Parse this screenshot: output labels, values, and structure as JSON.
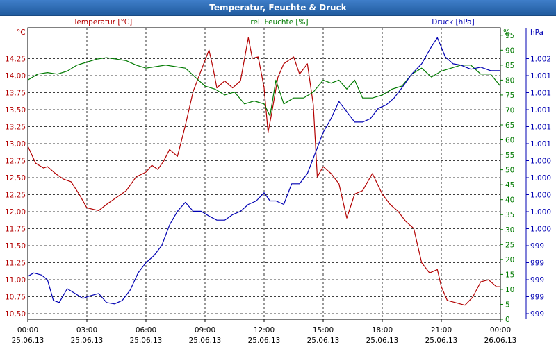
{
  "window": {
    "title": "Temperatur, Feuchte & Druck"
  },
  "chart_data": {
    "type": "line",
    "title": "Temperatur, Feuchte & Druck",
    "colors": {
      "temp": "#b30000",
      "hum": "#007a00",
      "press": "#0000b3"
    },
    "x_ticks": [
      {
        "time": "00:00",
        "date": "25.06.13"
      },
      {
        "time": "03:00",
        "date": "25.06.13"
      },
      {
        "time": "06:00",
        "date": "25.06.13"
      },
      {
        "time": "09:00",
        "date": "25.06.13"
      },
      {
        "time": "12:00",
        "date": "25.06.13"
      },
      {
        "time": "15:00",
        "date": "25.06.13"
      },
      {
        "time": "18:00",
        "date": "25.06.13"
      },
      {
        "time": "21:00",
        "date": "25.06.13"
      },
      {
        "time": "00:00",
        "date": "26.06.13"
      }
    ],
    "xlim": [
      0,
      24
    ],
    "grid": true,
    "axes": {
      "temp": {
        "unit": "°C",
        "label": "Temperatur [°C]",
        "ylim": [
          10.375,
          14.625
        ],
        "ticks": [
          "10,50",
          "10,75",
          "11,00",
          "11,25",
          "11,50",
          "11,75",
          "12,00",
          "12,25",
          "12,50",
          "12,75",
          "13,00",
          "13,25",
          "13,50",
          "13,75",
          "14,00",
          "14,25"
        ]
      },
      "hum": {
        "unit": "%",
        "label": "rel. Feuchte [%]",
        "ylim": [
          0,
          97.5
        ],
        "ticks": [
          "0",
          "5",
          "10",
          "15",
          "20",
          "25",
          "30",
          "35",
          "40",
          "45",
          "50",
          "55",
          "60",
          "65",
          "70",
          "75",
          "80",
          "85",
          "90",
          "95"
        ]
      },
      "press": {
        "unit": "hPa",
        "label": "Druck [hPa]",
        "ticks": [
          "999",
          "999",
          "999",
          "999",
          "999",
          "1.000",
          "1.000",
          "1.000",
          "1.000",
          "1.000",
          "1.001",
          "1.001",
          "1.001",
          "1.001",
          "1.001",
          "1.002"
        ]
      }
    },
    "series": [
      {
        "name": "Temperatur [°C]",
        "axis": "temp",
        "points": [
          [
            0,
            12.9
          ],
          [
            0.4,
            12.65
          ],
          [
            0.8,
            12.58
          ],
          [
            1.0,
            12.6
          ],
          [
            1.4,
            12.5
          ],
          [
            1.8,
            12.42
          ],
          [
            2.2,
            12.38
          ],
          [
            2.6,
            12.2
          ],
          [
            3.0,
            12.0
          ],
          [
            3.3,
            11.98
          ],
          [
            3.6,
            11.96
          ],
          [
            4.0,
            12.05
          ],
          [
            4.5,
            12.15
          ],
          [
            5.0,
            12.25
          ],
          [
            5.5,
            12.45
          ],
          [
            6.0,
            12.52
          ],
          [
            6.3,
            12.62
          ],
          [
            6.6,
            12.56
          ],
          [
            6.9,
            12.68
          ],
          [
            7.2,
            12.85
          ],
          [
            7.6,
            12.75
          ],
          [
            8.0,
            13.2
          ],
          [
            8.4,
            13.7
          ],
          [
            8.8,
            14.0
          ],
          [
            9.2,
            14.3
          ],
          [
            9.4,
            14.05
          ],
          [
            9.6,
            13.75
          ],
          [
            10.0,
            13.85
          ],
          [
            10.4,
            13.75
          ],
          [
            10.8,
            13.85
          ],
          [
            11.2,
            14.48
          ],
          [
            11.4,
            14.18
          ],
          [
            11.7,
            14.2
          ],
          [
            12.0,
            13.75
          ],
          [
            12.2,
            13.1
          ],
          [
            12.4,
            13.4
          ],
          [
            12.7,
            13.9
          ],
          [
            13.0,
            14.1
          ],
          [
            13.5,
            14.2
          ],
          [
            13.8,
            13.95
          ],
          [
            14.2,
            14.1
          ],
          [
            14.5,
            13.5
          ],
          [
            14.7,
            12.45
          ],
          [
            15.0,
            12.6
          ],
          [
            15.4,
            12.5
          ],
          [
            15.8,
            12.35
          ],
          [
            16.2,
            11.85
          ],
          [
            16.6,
            12.2
          ],
          [
            17.0,
            12.25
          ],
          [
            17.5,
            12.5
          ],
          [
            18.0,
            12.2
          ],
          [
            18.4,
            12.05
          ],
          [
            18.8,
            11.95
          ],
          [
            19.2,
            11.8
          ],
          [
            19.6,
            11.7
          ],
          [
            20.0,
            11.2
          ],
          [
            20.4,
            11.05
          ],
          [
            20.8,
            11.1
          ],
          [
            21.0,
            10.85
          ],
          [
            21.3,
            10.65
          ],
          [
            21.7,
            10.62
          ],
          [
            22.2,
            10.58
          ],
          [
            22.6,
            10.7
          ],
          [
            23.0,
            10.92
          ],
          [
            23.4,
            10.95
          ],
          [
            23.8,
            10.85
          ],
          [
            24.0,
            10.85
          ]
        ]
      },
      {
        "name": "rel. Feuchte [%]",
        "axis": "hum",
        "points": [
          [
            0,
            80
          ],
          [
            0.5,
            82
          ],
          [
            1.0,
            82.5
          ],
          [
            1.5,
            82
          ],
          [
            2.0,
            83
          ],
          [
            2.5,
            85
          ],
          [
            3.0,
            86
          ],
          [
            3.5,
            87
          ],
          [
            4.0,
            87.5
          ],
          [
            4.5,
            87
          ],
          [
            5.0,
            86.5
          ],
          [
            5.5,
            85
          ],
          [
            6.0,
            84
          ],
          [
            6.5,
            84.5
          ],
          [
            7.0,
            85
          ],
          [
            7.5,
            84.5
          ],
          [
            8.0,
            84
          ],
          [
            8.5,
            81
          ],
          [
            9.0,
            78
          ],
          [
            9.5,
            77
          ],
          [
            10.0,
            75
          ],
          [
            10.5,
            76
          ],
          [
            11.0,
            72
          ],
          [
            11.5,
            73
          ],
          [
            12.0,
            72
          ],
          [
            12.3,
            68
          ],
          [
            12.6,
            80
          ],
          [
            13.0,
            72
          ],
          [
            13.5,
            74
          ],
          [
            14.0,
            74
          ],
          [
            14.5,
            76
          ],
          [
            15.0,
            80
          ],
          [
            15.4,
            79
          ],
          [
            15.8,
            80
          ],
          [
            16.2,
            77
          ],
          [
            16.6,
            80
          ],
          [
            17.0,
            74
          ],
          [
            17.5,
            74
          ],
          [
            18.0,
            75
          ],
          [
            18.5,
            77
          ],
          [
            19.0,
            78
          ],
          [
            19.5,
            82
          ],
          [
            20.0,
            84
          ],
          [
            20.5,
            81
          ],
          [
            21.0,
            83
          ],
          [
            21.5,
            84
          ],
          [
            22.0,
            85
          ],
          [
            22.5,
            85
          ],
          [
            23.0,
            82
          ],
          [
            23.5,
            82
          ],
          [
            24.0,
            78
          ]
        ]
      },
      {
        "name": "Druck [hPa]",
        "axis": "press",
        "points": [
          [
            0,
            11.0
          ],
          [
            0.3,
            11.05
          ],
          [
            0.7,
            11.02
          ],
          [
            1.0,
            10.95
          ],
          [
            1.3,
            10.65
          ],
          [
            1.6,
            10.62
          ],
          [
            2.0,
            10.82
          ],
          [
            2.4,
            10.75
          ],
          [
            2.8,
            10.68
          ],
          [
            3.2,
            10.72
          ],
          [
            3.6,
            10.75
          ],
          [
            4.0,
            10.62
          ],
          [
            4.4,
            10.6
          ],
          [
            4.8,
            10.65
          ],
          [
            5.2,
            10.8
          ],
          [
            5.6,
            11.05
          ],
          [
            6.0,
            11.2
          ],
          [
            6.4,
            11.3
          ],
          [
            6.8,
            11.45
          ],
          [
            7.2,
            11.75
          ],
          [
            7.6,
            11.95
          ],
          [
            8.0,
            12.08
          ],
          [
            8.4,
            11.95
          ],
          [
            8.8,
            11.95
          ],
          [
            9.2,
            11.88
          ],
          [
            9.6,
            11.82
          ],
          [
            10.0,
            11.82
          ],
          [
            10.4,
            11.9
          ],
          [
            10.8,
            11.95
          ],
          [
            11.2,
            12.05
          ],
          [
            11.6,
            12.1
          ],
          [
            12.0,
            12.22
          ],
          [
            12.3,
            12.1
          ],
          [
            12.6,
            12.1
          ],
          [
            13.0,
            12.05
          ],
          [
            13.4,
            12.35
          ],
          [
            13.8,
            12.35
          ],
          [
            14.2,
            12.5
          ],
          [
            14.6,
            12.8
          ],
          [
            15.0,
            13.1
          ],
          [
            15.4,
            13.3
          ],
          [
            15.8,
            13.55
          ],
          [
            16.2,
            13.4
          ],
          [
            16.6,
            13.25
          ],
          [
            17.0,
            13.25
          ],
          [
            17.4,
            13.3
          ],
          [
            17.8,
            13.45
          ],
          [
            18.2,
            13.5
          ],
          [
            18.6,
            13.6
          ],
          [
            19.0,
            13.75
          ],
          [
            19.5,
            13.95
          ],
          [
            20.0,
            14.1
          ],
          [
            20.5,
            14.35
          ],
          [
            20.8,
            14.48
          ],
          [
            21.2,
            14.2
          ],
          [
            21.6,
            14.1
          ],
          [
            22.0,
            14.08
          ],
          [
            22.5,
            14.02
          ],
          [
            23.0,
            14.05
          ],
          [
            23.5,
            14.0
          ],
          [
            24.0,
            14.0
          ]
        ]
      }
    ]
  }
}
